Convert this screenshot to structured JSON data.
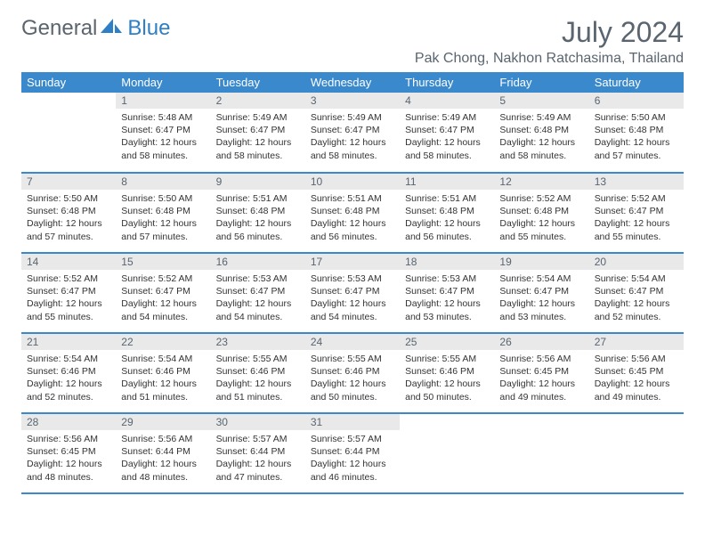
{
  "brand": {
    "part1": "General",
    "part2": "Blue"
  },
  "title": "July 2024",
  "location": "Pak Chong, Nakhon Ratchasima, Thailand",
  "colors": {
    "header_bg": "#3a89cc",
    "header_text": "#ffffff",
    "daynum_bg": "#e9e9e9",
    "text_muted": "#5a6570",
    "row_divider": "#3a89cc",
    "background": "#ffffff"
  },
  "typography": {
    "title_fontsize": 32,
    "location_fontsize": 16,
    "weekday_fontsize": 13,
    "body_fontsize": 10.5
  },
  "weekdays": [
    "Sunday",
    "Monday",
    "Tuesday",
    "Wednesday",
    "Thursday",
    "Friday",
    "Saturday"
  ],
  "weeks": [
    [
      null,
      {
        "day": "1",
        "sunrise": "Sunrise: 5:48 AM",
        "sunset": "Sunset: 6:47 PM",
        "daylight": "Daylight: 12 hours and 58 minutes."
      },
      {
        "day": "2",
        "sunrise": "Sunrise: 5:49 AM",
        "sunset": "Sunset: 6:47 PM",
        "daylight": "Daylight: 12 hours and 58 minutes."
      },
      {
        "day": "3",
        "sunrise": "Sunrise: 5:49 AM",
        "sunset": "Sunset: 6:47 PM",
        "daylight": "Daylight: 12 hours and 58 minutes."
      },
      {
        "day": "4",
        "sunrise": "Sunrise: 5:49 AM",
        "sunset": "Sunset: 6:47 PM",
        "daylight": "Daylight: 12 hours and 58 minutes."
      },
      {
        "day": "5",
        "sunrise": "Sunrise: 5:49 AM",
        "sunset": "Sunset: 6:48 PM",
        "daylight": "Daylight: 12 hours and 58 minutes."
      },
      {
        "day": "6",
        "sunrise": "Sunrise: 5:50 AM",
        "sunset": "Sunset: 6:48 PM",
        "daylight": "Daylight: 12 hours and 57 minutes."
      }
    ],
    [
      {
        "day": "7",
        "sunrise": "Sunrise: 5:50 AM",
        "sunset": "Sunset: 6:48 PM",
        "daylight": "Daylight: 12 hours and 57 minutes."
      },
      {
        "day": "8",
        "sunrise": "Sunrise: 5:50 AM",
        "sunset": "Sunset: 6:48 PM",
        "daylight": "Daylight: 12 hours and 57 minutes."
      },
      {
        "day": "9",
        "sunrise": "Sunrise: 5:51 AM",
        "sunset": "Sunset: 6:48 PM",
        "daylight": "Daylight: 12 hours and 56 minutes."
      },
      {
        "day": "10",
        "sunrise": "Sunrise: 5:51 AM",
        "sunset": "Sunset: 6:48 PM",
        "daylight": "Daylight: 12 hours and 56 minutes."
      },
      {
        "day": "11",
        "sunrise": "Sunrise: 5:51 AM",
        "sunset": "Sunset: 6:48 PM",
        "daylight": "Daylight: 12 hours and 56 minutes."
      },
      {
        "day": "12",
        "sunrise": "Sunrise: 5:52 AM",
        "sunset": "Sunset: 6:48 PM",
        "daylight": "Daylight: 12 hours and 55 minutes."
      },
      {
        "day": "13",
        "sunrise": "Sunrise: 5:52 AM",
        "sunset": "Sunset: 6:47 PM",
        "daylight": "Daylight: 12 hours and 55 minutes."
      }
    ],
    [
      {
        "day": "14",
        "sunrise": "Sunrise: 5:52 AM",
        "sunset": "Sunset: 6:47 PM",
        "daylight": "Daylight: 12 hours and 55 minutes."
      },
      {
        "day": "15",
        "sunrise": "Sunrise: 5:52 AM",
        "sunset": "Sunset: 6:47 PM",
        "daylight": "Daylight: 12 hours and 54 minutes."
      },
      {
        "day": "16",
        "sunrise": "Sunrise: 5:53 AM",
        "sunset": "Sunset: 6:47 PM",
        "daylight": "Daylight: 12 hours and 54 minutes."
      },
      {
        "day": "17",
        "sunrise": "Sunrise: 5:53 AM",
        "sunset": "Sunset: 6:47 PM",
        "daylight": "Daylight: 12 hours and 54 minutes."
      },
      {
        "day": "18",
        "sunrise": "Sunrise: 5:53 AM",
        "sunset": "Sunset: 6:47 PM",
        "daylight": "Daylight: 12 hours and 53 minutes."
      },
      {
        "day": "19",
        "sunrise": "Sunrise: 5:54 AM",
        "sunset": "Sunset: 6:47 PM",
        "daylight": "Daylight: 12 hours and 53 minutes."
      },
      {
        "day": "20",
        "sunrise": "Sunrise: 5:54 AM",
        "sunset": "Sunset: 6:47 PM",
        "daylight": "Daylight: 12 hours and 52 minutes."
      }
    ],
    [
      {
        "day": "21",
        "sunrise": "Sunrise: 5:54 AM",
        "sunset": "Sunset: 6:46 PM",
        "daylight": "Daylight: 12 hours and 52 minutes."
      },
      {
        "day": "22",
        "sunrise": "Sunrise: 5:54 AM",
        "sunset": "Sunset: 6:46 PM",
        "daylight": "Daylight: 12 hours and 51 minutes."
      },
      {
        "day": "23",
        "sunrise": "Sunrise: 5:55 AM",
        "sunset": "Sunset: 6:46 PM",
        "daylight": "Daylight: 12 hours and 51 minutes."
      },
      {
        "day": "24",
        "sunrise": "Sunrise: 5:55 AM",
        "sunset": "Sunset: 6:46 PM",
        "daylight": "Daylight: 12 hours and 50 minutes."
      },
      {
        "day": "25",
        "sunrise": "Sunrise: 5:55 AM",
        "sunset": "Sunset: 6:46 PM",
        "daylight": "Daylight: 12 hours and 50 minutes."
      },
      {
        "day": "26",
        "sunrise": "Sunrise: 5:56 AM",
        "sunset": "Sunset: 6:45 PM",
        "daylight": "Daylight: 12 hours and 49 minutes."
      },
      {
        "day": "27",
        "sunrise": "Sunrise: 5:56 AM",
        "sunset": "Sunset: 6:45 PM",
        "daylight": "Daylight: 12 hours and 49 minutes."
      }
    ],
    [
      {
        "day": "28",
        "sunrise": "Sunrise: 5:56 AM",
        "sunset": "Sunset: 6:45 PM",
        "daylight": "Daylight: 12 hours and 48 minutes."
      },
      {
        "day": "29",
        "sunrise": "Sunrise: 5:56 AM",
        "sunset": "Sunset: 6:44 PM",
        "daylight": "Daylight: 12 hours and 48 minutes."
      },
      {
        "day": "30",
        "sunrise": "Sunrise: 5:57 AM",
        "sunset": "Sunset: 6:44 PM",
        "daylight": "Daylight: 12 hours and 47 minutes."
      },
      {
        "day": "31",
        "sunrise": "Sunrise: 5:57 AM",
        "sunset": "Sunset: 6:44 PM",
        "daylight": "Daylight: 12 hours and 46 minutes."
      },
      null,
      null,
      null
    ]
  ]
}
